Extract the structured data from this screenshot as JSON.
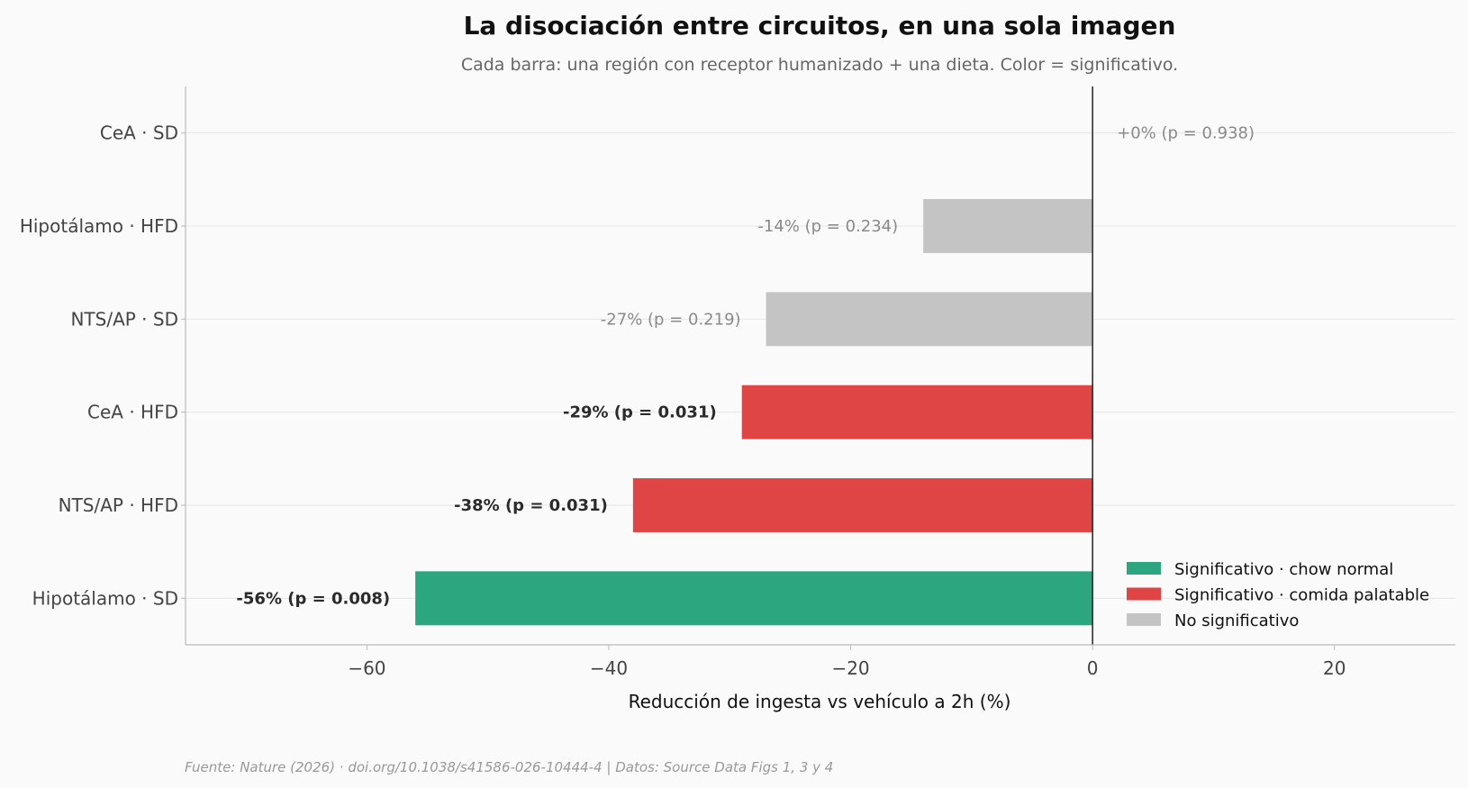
{
  "chart_data": {
    "type": "bar",
    "orientation": "horizontal",
    "title": "La disociación entre circuitos, en una sola imagen",
    "subtitle": "Cada barra: una región con receptor humanizado + una dieta. Color = significativo.",
    "xlabel": "Reducción de ingesta vs vehículo a 2h (%)",
    "ylabel": "",
    "xlim": [
      -75,
      30
    ],
    "xticks": [
      -60,
      -40,
      -20,
      0,
      20
    ],
    "xtick_labels": [
      "−60",
      "−40",
      "−20",
      "0",
      "20"
    ],
    "grid": "horizontal",
    "legend_position": "lower-right",
    "colors": {
      "chow": "#2ca67f",
      "palatable": "#e04545",
      "ns": "#c4c4c4"
    },
    "legend": [
      {
        "key": "chow",
        "label": "Significativo · chow normal"
      },
      {
        "key": "palatable",
        "label": "Significativo · comida palatable"
      },
      {
        "key": "ns",
        "label": "No significativo"
      }
    ],
    "categories": [
      "CeA · SD",
      "Hipotálamo · HFD",
      "NTS/AP · SD",
      "CeA · HFD",
      "NTS/AP · HFD",
      "Hipotálamo · SD"
    ],
    "values": [
      0,
      -14,
      -27,
      -29,
      -38,
      -56
    ],
    "groups": [
      "ns",
      "ns",
      "ns",
      "palatable",
      "palatable",
      "chow"
    ],
    "bar_labels": [
      "+0%  (p = 0.938)",
      "-14%  (p = 0.234)",
      "-27%  (p = 0.219)",
      "-29%  (p = 0.031)",
      "-38%  (p = 0.031)",
      "-56%  (p = 0.008)"
    ],
    "p_values": [
      0.938,
      0.234,
      0.219,
      0.031,
      0.031,
      0.008
    ],
    "source": "Fuente: Nature (2026) · doi.org/10.1038/s41586-026-10444-4 | Datos: Source Data Figs 1, 3 y 4"
  }
}
